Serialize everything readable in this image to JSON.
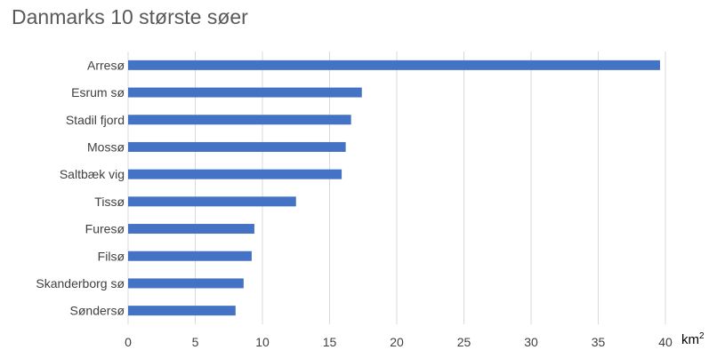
{
  "chart_data": {
    "type": "bar",
    "orientation": "horizontal",
    "title": "Danmarks 10 største søer",
    "unit": {
      "base": "km",
      "sup": "2"
    },
    "categories": [
      "Arresø",
      "Esrum sø",
      "Stadil fjord",
      "Mossø",
      "Saltbæk vig",
      "Tissø",
      "Furesø",
      "Filsø",
      "Skanderborg sø",
      "Søndersø"
    ],
    "values": [
      39.6,
      17.4,
      16.6,
      16.2,
      15.9,
      12.5,
      9.4,
      9.2,
      8.6,
      8.0
    ],
    "xlim": [
      0,
      40
    ],
    "xticks": [
      "0",
      "5",
      "10",
      "15",
      "20",
      "25",
      "30",
      "35",
      "40"
    ],
    "grid": "vertical",
    "legend": "none",
    "bar_color": "#4472C4"
  }
}
